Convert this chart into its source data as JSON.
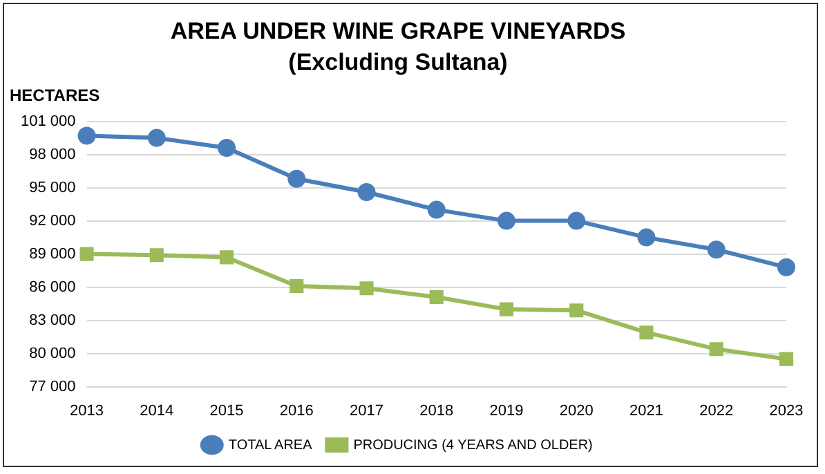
{
  "chart_data": {
    "type": "line",
    "title": "AREA UNDER WINE GRAPE VINEYARDS",
    "subtitle": "(Excluding Sultana)",
    "ylabel": "HECTARES",
    "categories": [
      "2013",
      "2014",
      "2015",
      "2016",
      "2017",
      "2018",
      "2019",
      "2020",
      "2021",
      "2022",
      "2023"
    ],
    "series": [
      {
        "name": "TOTAL AREA",
        "color": "#4a7ebb",
        "marker": "circle",
        "values": [
          99700,
          99500,
          98600,
          95800,
          94600,
          93000,
          92000,
          92000,
          90500,
          89400,
          87800
        ]
      },
      {
        "name": "PRODUCING (4 YEARS AND OLDER)",
        "color": "#9bbb59",
        "marker": "square",
        "values": [
          89000,
          88900,
          88700,
          86100,
          85900,
          85100,
          84000,
          83900,
          81900,
          80400,
          79500
        ]
      }
    ],
    "ylim": [
      77000,
      101000
    ],
    "yticks": [
      {
        "value": 77000,
        "label": "77 000"
      },
      {
        "value": 80000,
        "label": "80 000"
      },
      {
        "value": 83000,
        "label": "83 000"
      },
      {
        "value": 86000,
        "label": "86 000"
      },
      {
        "value": 89000,
        "label": "89 000"
      },
      {
        "value": 92000,
        "label": "92 000"
      },
      {
        "value": 95000,
        "label": "95 000"
      },
      {
        "value": 98000,
        "label": "98 000"
      },
      {
        "value": 101000,
        "label": "101 000"
      }
    ],
    "grid": "y",
    "legend": "bottom",
    "line_style": "solid"
  }
}
